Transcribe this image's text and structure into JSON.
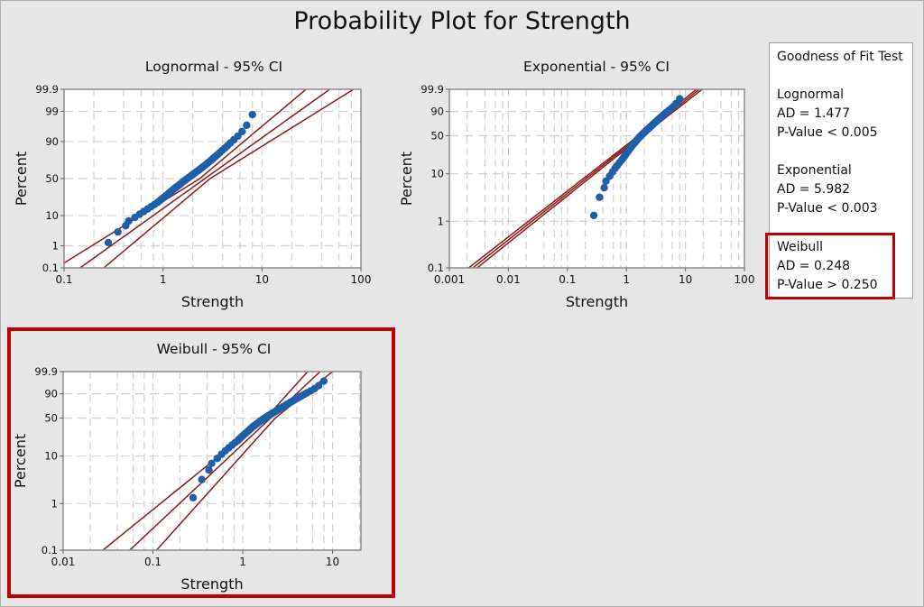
{
  "chart_data": {
    "type": "scatter",
    "title": "Probability Plot for Strength",
    "strength_values": [
      0.28,
      0.35,
      0.42,
      0.45,
      0.52,
      0.58,
      0.64,
      0.7,
      0.76,
      0.82,
      0.88,
      0.93,
      0.98,
      1.03,
      1.08,
      1.13,
      1.18,
      1.23,
      1.28,
      1.34,
      1.4,
      1.46,
      1.52,
      1.58,
      1.65,
      1.72,
      1.8,
      1.88,
      1.96,
      2.05,
      2.14,
      2.24,
      2.34,
      2.45,
      2.56,
      2.68,
      2.8,
      2.93,
      3.07,
      3.22,
      3.38,
      3.55,
      3.74,
      3.95,
      4.2,
      4.48,
      4.8,
      5.2,
      5.7,
      6.3,
      7.0,
      8.0
    ],
    "panels": [
      {
        "name": "lognormal",
        "title": "Lognormal - 95% CI",
        "xlabel": "Strength",
        "ylabel": "Percent",
        "x_scale": "log",
        "xlim": [
          0.1,
          100
        ],
        "ylim": [
          0.1,
          99.9
        ],
        "xticks": [
          "0.1",
          "1",
          "10",
          "100"
        ],
        "xtick_values": [
          0.1,
          1,
          10,
          100
        ],
        "yticks": [
          "0.1",
          "1",
          "10",
          "50",
          "90",
          "99",
          "99.9"
        ],
        "ytick_values": [
          0.1,
          1,
          10,
          50,
          90,
          99,
          99.9
        ],
        "fit": {
          "distribution": "lognormal",
          "mu": 0.975,
          "sigma": 0.94
        }
      },
      {
        "name": "exponential",
        "title": "Exponential - 95% CI",
        "xlabel": "Strength",
        "ylabel": "Percent",
        "x_scale": "log",
        "xlim": [
          0.001,
          100
        ],
        "ylim": [
          0.1,
          99.9
        ],
        "xticks": [
          "0.001",
          "0.01",
          "0.1",
          "1",
          "10",
          "100"
        ],
        "xtick_values": [
          0.001,
          0.01,
          0.1,
          1,
          10,
          100
        ],
        "yticks": [
          "0.1",
          "1",
          "10",
          "50",
          "90",
          "99.9"
        ],
        "ytick_values": [
          0.1,
          1,
          10,
          50,
          90,
          99.9
        ],
        "fit": {
          "distribution": "exponential",
          "mean": 2.5
        }
      },
      {
        "name": "weibull",
        "title": "Weibull - 95% CI",
        "xlabel": "Strength",
        "ylabel": "Percent",
        "x_scale": "log",
        "xlim": [
          0.01,
          20.7
        ],
        "ylim": [
          0.1,
          99.9
        ],
        "xticks": [
          "0.01",
          "0.1",
          "1",
          "10"
        ],
        "xtick_values": [
          0.01,
          0.1,
          1,
          10
        ],
        "yticks": [
          "0.1",
          "1",
          "10",
          "50",
          "90",
          "99.9"
        ],
        "ytick_values": [
          0.1,
          1,
          10,
          50,
          90,
          99.9
        ],
        "fit": {
          "distribution": "weibull",
          "shape": 1.81,
          "scale": 2.5
        }
      }
    ],
    "ci_level": 95
  },
  "goodness_of_fit": {
    "title": "Goodness of Fit Test",
    "tests": [
      {
        "name": "Lognormal",
        "ad": "AD = 1.477",
        "p": "P-Value < 0.005"
      },
      {
        "name": "Exponential",
        "ad": "AD = 5.982",
        "p": "P-Value < 0.003"
      },
      {
        "name": "Weibull",
        "ad": "AD = 0.248",
        "p": "P-Value > 0.250"
      }
    ]
  },
  "colors": {
    "points": "#1f5fa8",
    "fit_lines": "#8b1a1a",
    "highlight": "#c00000",
    "grid": "#d0d0d0"
  }
}
